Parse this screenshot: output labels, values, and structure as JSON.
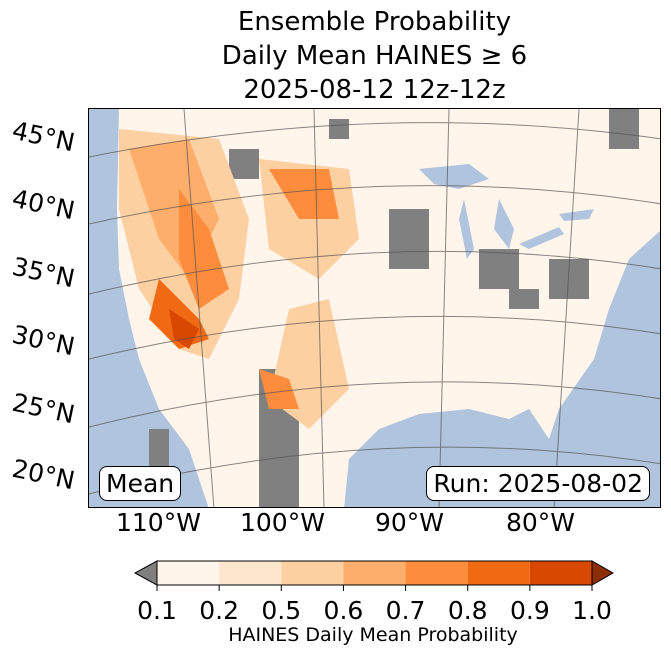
{
  "title": {
    "line1": "Ensemble Probability",
    "line2": "Daily Mean HAINES ≥ 6",
    "line3": "2025-08-12 12z-12z"
  },
  "map": {
    "ocean_color": "#b0c4de",
    "land_color": "#fff5eb",
    "missing_color": "#808080",
    "lat_labels": [
      "45°N",
      "40°N",
      "35°N",
      "30°N",
      "25°N",
      "20°N"
    ],
    "lon_labels": [
      "110°W",
      "100°W",
      "90°W",
      "80°W"
    ],
    "stat_label": "Mean",
    "run_label": "Run: 2025-08-02"
  },
  "colorbar": {
    "ticks": [
      "0.1",
      "0.2",
      "0.5",
      "0.6",
      "0.7",
      "0.8",
      "0.9",
      "1.0"
    ],
    "colors": [
      "#fff5eb",
      "#fee6ce",
      "#fdd0a2",
      "#fdae6b",
      "#fd8d3c",
      "#f16913",
      "#d94801"
    ],
    "under_color": "#808080",
    "over_color": "#8c2d04",
    "label": "HAINES Daily Mean Probability"
  }
}
